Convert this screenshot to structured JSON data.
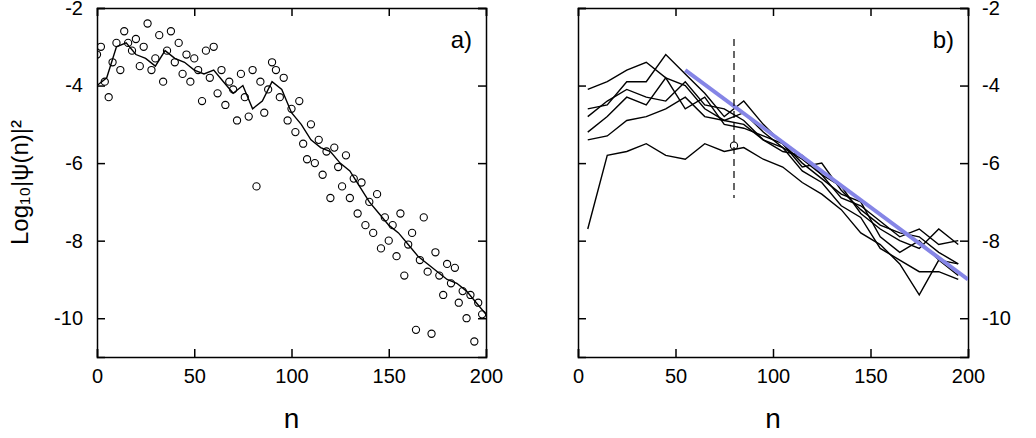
{
  "chart_data": [
    {
      "type": "scatter",
      "title": "a)",
      "x_label": "n",
      "y_label": "Log₁₀|ψ(n)|²",
      "xlim": [
        0,
        200
      ],
      "ylim": [
        -11,
        -2
      ],
      "xticks": [
        0,
        50,
        100,
        150,
        200
      ],
      "yticks": [
        -2,
        -4,
        -6,
        -8,
        -10
      ],
      "series": [
        {
          "type": "scatter",
          "marker": "circle",
          "color": "#000000",
          "x": [
            0,
            2,
            4,
            6,
            8,
            10,
            12,
            14,
            16,
            18,
            20,
            22,
            24,
            26,
            28,
            30,
            32,
            34,
            36,
            38,
            40,
            42,
            44,
            46,
            48,
            50,
            52,
            54,
            56,
            58,
            60,
            62,
            64,
            66,
            68,
            70,
            72,
            74,
            76,
            78,
            80,
            82,
            84,
            86,
            88,
            90,
            92,
            94,
            96,
            98,
            100,
            102,
            104,
            106,
            108,
            110,
            112,
            114,
            116,
            118,
            120,
            122,
            124,
            126,
            128,
            130,
            132,
            134,
            136,
            138,
            140,
            142,
            144,
            146,
            148,
            150,
            152,
            154,
            156,
            158,
            160,
            162,
            164,
            166,
            168,
            170,
            172,
            174,
            176,
            178,
            180,
            182,
            184,
            186,
            188,
            190,
            192,
            194,
            196,
            198
          ],
          "values": [
            -3.2,
            -3.0,
            -3.9,
            -4.3,
            -3.4,
            -2.9,
            -3.6,
            -2.6,
            -2.9,
            -3.1,
            -2.8,
            -3.5,
            -3.0,
            -2.4,
            -3.6,
            -3.3,
            -2.7,
            -3.9,
            -3.1,
            -2.6,
            -3.4,
            -2.9,
            -3.7,
            -3.2,
            -3.9,
            -3.3,
            -3.6,
            -4.4,
            -3.1,
            -3.8,
            -3.0,
            -4.2,
            -3.6,
            -4.5,
            -3.9,
            -4.1,
            -4.9,
            -3.7,
            -4.3,
            -4.8,
            -3.6,
            -6.6,
            -3.9,
            -4.7,
            -4.1,
            -3.4,
            -3.6,
            -4.3,
            -3.8,
            -4.9,
            -4.6,
            -5.2,
            -4.4,
            -5.5,
            -5.9,
            -5.0,
            -6.0,
            -5.4,
            -6.3,
            -5.7,
            -6.9,
            -5.6,
            -6.1,
            -6.6,
            -5.8,
            -6.9,
            -6.4,
            -7.3,
            -6.5,
            -7.6,
            -7.0,
            -7.8,
            -6.8,
            -8.2,
            -7.4,
            -8.0,
            -7.6,
            -8.4,
            -7.3,
            -8.9,
            -8.1,
            -7.8,
            -10.3,
            -8.5,
            -7.4,
            -8.8,
            -10.4,
            -8.3,
            -8.9,
            -9.4,
            -8.6,
            -9.1,
            -8.7,
            -9.6,
            -9.3,
            -10.0,
            -9.4,
            -10.6,
            -9.6,
            -9.9
          ]
        },
        {
          "type": "line",
          "line_style": "solid",
          "color": "#000000",
          "x": [
            0,
            5,
            10,
            15,
            20,
            25,
            30,
            35,
            40,
            45,
            50,
            55,
            60,
            65,
            70,
            75,
            80,
            85,
            90,
            95,
            100,
            105,
            110,
            115,
            120,
            125,
            130,
            135,
            140,
            145,
            150,
            155,
            160,
            165,
            170,
            175,
            180,
            185,
            190,
            195,
            200
          ],
          "values": [
            -4.0,
            -3.8,
            -3.0,
            -2.9,
            -3.2,
            -3.3,
            -3.5,
            -3.1,
            -3.3,
            -3.4,
            -3.6,
            -3.7,
            -3.6,
            -3.9,
            -4.2,
            -4.0,
            -4.6,
            -4.4,
            -3.9,
            -4.1,
            -4.7,
            -5.0,
            -5.4,
            -5.6,
            -5.7,
            -6.0,
            -6.2,
            -6.6,
            -7.0,
            -7.3,
            -7.6,
            -7.8,
            -8.1,
            -8.4,
            -8.6,
            -8.8,
            -9.0,
            -9.1,
            -9.3,
            -9.6,
            -9.9
          ]
        }
      ]
    },
    {
      "type": "line",
      "title": "b)",
      "x_label": "n",
      "xlim": [
        0,
        200
      ],
      "ylim": [
        -11,
        -2
      ],
      "xticks": [
        0,
        50,
        100,
        150,
        200
      ],
      "yticks": [
        -2,
        -4,
        -6,
        -8,
        -10
      ],
      "series": [
        {
          "type": "line",
          "line_style": "solid",
          "color": "#000000",
          "x": [
            5,
            15,
            25,
            35,
            45,
            55,
            65,
            75,
            85,
            95,
            105,
            115,
            125,
            135,
            145,
            155,
            165,
            175,
            185,
            195
          ],
          "values": [
            -7.7,
            -5.8,
            -5.7,
            -5.5,
            -5.8,
            -5.9,
            -5.5,
            -5.7,
            -5.6,
            -5.9,
            -6.1,
            -6.5,
            -6.8,
            -7.2,
            -7.8,
            -8.1,
            -8.6,
            -9.4,
            -8.5,
            -8.6
          ]
        },
        {
          "type": "line",
          "line_style": "solid",
          "color": "#000000",
          "x": [
            5,
            15,
            25,
            35,
            45,
            55,
            65,
            75,
            85,
            95,
            105,
            115,
            125,
            135,
            145,
            155,
            165,
            175,
            185,
            195
          ],
          "values": [
            -4.1,
            -3.9,
            -3.6,
            -3.4,
            -3.8,
            -4.0,
            -4.6,
            -4.9,
            -4.7,
            -5.2,
            -5.6,
            -5.9,
            -6.3,
            -6.9,
            -7.1,
            -7.5,
            -7.9,
            -7.7,
            -8.1,
            -8.0
          ]
        },
        {
          "type": "line",
          "line_style": "solid",
          "color": "#000000",
          "x": [
            5,
            15,
            25,
            35,
            45,
            55,
            65,
            75,
            85,
            95,
            105,
            115,
            125,
            135,
            145,
            155,
            165,
            175,
            185,
            195
          ],
          "values": [
            -4.6,
            -4.5,
            -3.9,
            -3.9,
            -3.2,
            -3.7,
            -4.2,
            -4.8,
            -4.4,
            -5.0,
            -5.5,
            -6.1,
            -6.0,
            -6.7,
            -7.2,
            -7.6,
            -7.8,
            -7.9,
            -8.3,
            -8.6
          ]
        },
        {
          "type": "line",
          "line_style": "solid",
          "color": "#000000",
          "x": [
            5,
            15,
            25,
            35,
            45,
            55,
            65,
            75,
            85,
            95,
            105,
            115,
            125,
            135,
            145,
            155,
            165,
            175,
            185,
            195
          ],
          "values": [
            -4.8,
            -4.4,
            -4.1,
            -4.3,
            -4.4,
            -3.9,
            -4.5,
            -4.6,
            -4.9,
            -5.4,
            -5.7,
            -5.8,
            -6.3,
            -6.6,
            -7.3,
            -7.7,
            -8.0,
            -8.2,
            -7.7,
            -8.1
          ]
        },
        {
          "type": "line",
          "line_style": "solid",
          "color": "#000000",
          "x": [
            5,
            15,
            25,
            35,
            45,
            55,
            65,
            75,
            85,
            95,
            105,
            115,
            125,
            135,
            145,
            155,
            165,
            175,
            185,
            195
          ],
          "values": [
            -5.2,
            -4.8,
            -4.3,
            -4.5,
            -3.8,
            -4.6,
            -4.3,
            -5.0,
            -5.1,
            -5.3,
            -5.5,
            -6.0,
            -6.4,
            -6.8,
            -7.0,
            -7.9,
            -8.3,
            -8.0,
            -8.5,
            -8.9
          ]
        },
        {
          "type": "line",
          "line_style": "solid",
          "color": "#000000",
          "x": [
            5,
            15,
            25,
            35,
            45,
            55,
            65,
            75,
            85,
            95,
            105,
            115,
            125,
            135,
            145,
            155,
            165,
            175,
            185,
            195
          ],
          "values": [
            -5.4,
            -5.3,
            -4.9,
            -4.8,
            -4.6,
            -4.3,
            -4.8,
            -4.9,
            -5.0,
            -5.4,
            -5.6,
            -6.2,
            -6.5,
            -7.1,
            -7.4,
            -8.2,
            -8.5,
            -8.8,
            -8.8,
            -9.0
          ]
        },
        {
          "type": "line",
          "line_style": "solid",
          "color": "#8585e6",
          "x": [
            55,
            200
          ],
          "values": [
            -3.6,
            -9.0
          ]
        },
        {
          "type": "line",
          "line_style": "dashed",
          "color": "#000000",
          "x": [
            80,
            80
          ],
          "values": [
            -2.8,
            -6.9
          ]
        },
        {
          "type": "scatter",
          "marker": "circle",
          "color": "#000000",
          "x": [
            80
          ],
          "values": [
            -5.55
          ]
        }
      ]
    }
  ]
}
